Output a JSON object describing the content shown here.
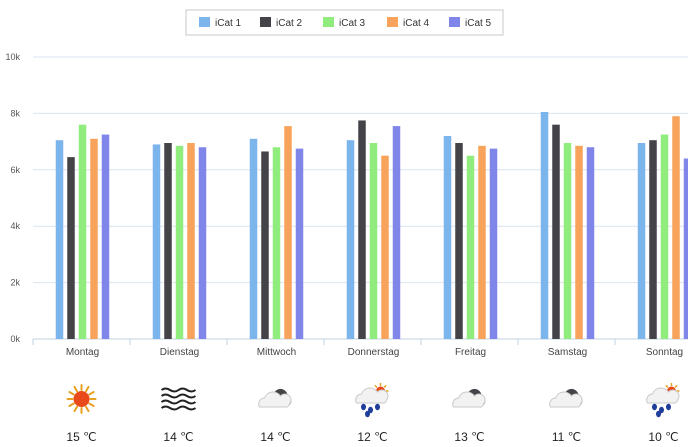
{
  "chart_data": {
    "type": "bar",
    "categories": [
      "Montag",
      "Dienstag",
      "Mittwoch",
      "Donnerstag",
      "Freitag",
      "Samstag",
      "Sonntag"
    ],
    "series": [
      {
        "name": "iCat 1",
        "color": "#7cb5ec",
        "values": [
          7050,
          6900,
          7100,
          7050,
          7200,
          8050,
          6950
        ]
      },
      {
        "name": "iCat 2",
        "color": "#434348",
        "values": [
          6450,
          6950,
          6650,
          7750,
          6950,
          7600,
          7050
        ]
      },
      {
        "name": "iCat 3",
        "color": "#90ed7d",
        "values": [
          7600,
          6850,
          6800,
          6950,
          6500,
          6950,
          7250
        ]
      },
      {
        "name": "iCat 4",
        "color": "#f7a35c",
        "values": [
          7100,
          6950,
          7550,
          6500,
          6850,
          6850,
          7900
        ]
      },
      {
        "name": "iCat 5",
        "color": "#8085e9",
        "values": [
          7250,
          6800,
          6750,
          7550,
          6750,
          6800,
          6400
        ]
      }
    ],
    "yticks": [
      "0k",
      "2k",
      "4k",
      "6k",
      "8k",
      "10k"
    ],
    "ylim": [
      0,
      10000
    ],
    "grid": true,
    "legend": "top-center"
  },
  "forecast": [
    {
      "day": "Montag",
      "icon": "sun-icon",
      "temp": "15 ℃"
    },
    {
      "day": "Dienstag",
      "icon": "fog-icon",
      "temp": "14 ℃"
    },
    {
      "day": "Mittwoch",
      "icon": "cloud-icon",
      "temp": "14 ℃"
    },
    {
      "day": "Donnerstag",
      "icon": "rain-sun-icon",
      "temp": "12 ℃"
    },
    {
      "day": "Freitag",
      "icon": "cloud-icon",
      "temp": "13 ℃"
    },
    {
      "day": "Samstag",
      "icon": "cloud-icon",
      "temp": "11 ℃"
    },
    {
      "day": "Sonntag",
      "icon": "rain-sun-icon",
      "temp": "10 ℃"
    }
  ]
}
